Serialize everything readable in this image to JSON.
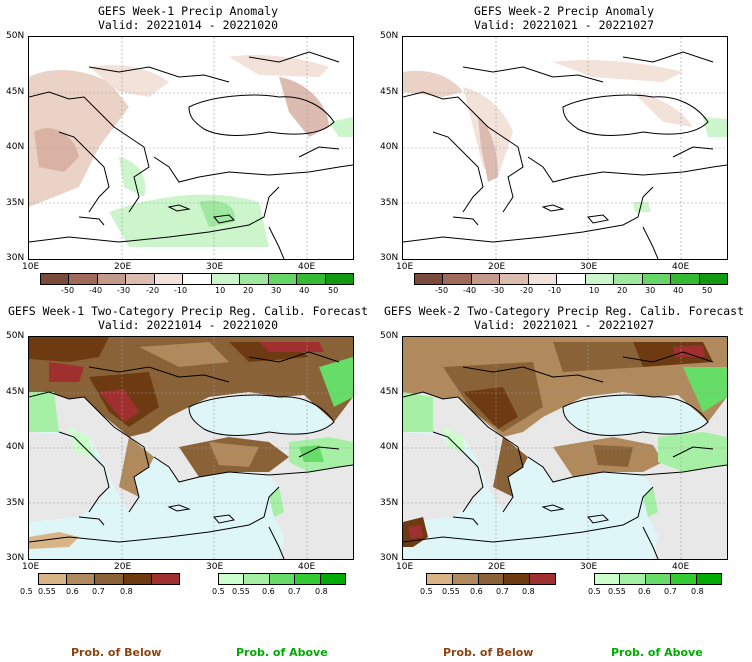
{
  "panels": [
    {
      "title1": "GEFS Week-1 Precip Anomaly",
      "title2": "Valid: 20221014 - 20221020"
    },
    {
      "title1": "GEFS Week-2 Precip Anomaly",
      "title2": "Valid: 20221021 - 20221027"
    },
    {
      "title1": "GEFS Week-1 Two-Category Precip Reg. Calib. Forecast",
      "title2": "Valid: 20221014 - 20221020"
    },
    {
      "title1": "GEFS Week-2 Two-Category Precip Reg. Calib. Forecast",
      "title2": "Valid: 20221021 - 20221027"
    }
  ],
  "lat_labels": [
    "50N",
    "45N",
    "40N",
    "35N",
    "30N"
  ],
  "lon_labels": [
    "10E",
    "20E",
    "30E",
    "40E"
  ],
  "anomaly_scale": {
    "labels": [
      "-50",
      "-40",
      "-30",
      "-20",
      "-10",
      "10",
      "20",
      "30",
      "40",
      "50"
    ],
    "colors": [
      "#7a4a3a",
      "#a06a5a",
      "#c49a8c",
      "#dcbcb0",
      "#f2e2da",
      "#ffffff",
      "#ccf5cc",
      "#9fe89f",
      "#66d766",
      "#33bb33",
      "#119911"
    ]
  },
  "prob_scale": {
    "below_labels": [
      "0.5",
      "0.55",
      "0.6",
      "0.7",
      "0.8"
    ],
    "below_colors": [
      "#d8b486",
      "#b08a5c",
      "#8a6238",
      "#6e3a12",
      "#a03030"
    ],
    "above_labels": [
      "0.5",
      "0.55",
      "0.6",
      "0.7",
      "0.8"
    ],
    "above_colors": [
      "#ccffcc",
      "#a6f0a6",
      "#66dd66",
      "#33cc33",
      "#00aa00"
    ]
  },
  "footer": {
    "below": "Prob. of Below",
    "above": "Prob. of Above",
    "below_color": "#8b4513",
    "above_color": "#00aa00"
  }
}
